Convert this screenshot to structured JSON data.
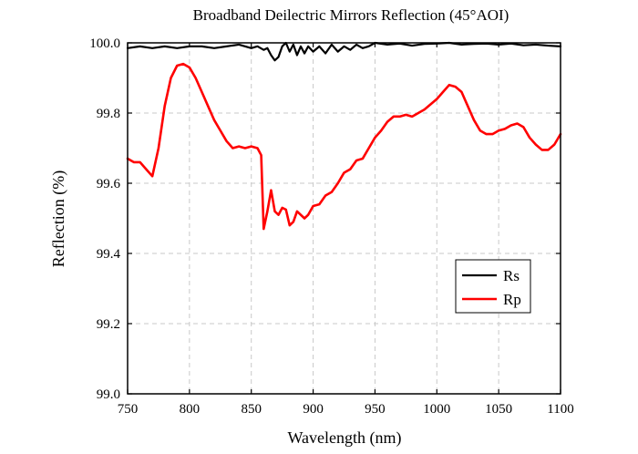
{
  "chart_data": {
    "type": "line",
    "title": "Broadband Deilectric Mirrors Reflection (45°AOI)",
    "xlabel": "Wavelength (nm)",
    "ylabel": "Reflection (%)",
    "xlim": [
      750,
      1100
    ],
    "ylim": [
      99.0,
      100.0
    ],
    "x_ticks": [
      750,
      800,
      850,
      900,
      950,
      1000,
      1050,
      1100
    ],
    "x_tick_labels": [
      "750",
      "800",
      "850",
      "900",
      "950",
      "1000",
      "1050",
      "1100"
    ],
    "y_ticks": [
      99.0,
      99.2,
      99.4,
      99.6,
      99.8,
      100.0
    ],
    "y_tick_labels": [
      "99.0",
      "99.2",
      "99.4",
      "99.6",
      "99.8",
      "100.0"
    ],
    "grid": true,
    "grid_style": "dashed",
    "legend_position": "bottom-right",
    "series": [
      {
        "name": "Rs",
        "color": "#000000",
        "x": [
          750,
          760,
          770,
          780,
          790,
          800,
          810,
          820,
          830,
          840,
          850,
          855,
          860,
          863,
          866,
          869,
          872,
          875,
          878,
          881,
          884,
          887,
          890,
          893,
          896,
          900,
          905,
          910,
          915,
          920,
          925,
          930,
          935,
          940,
          945,
          950,
          960,
          970,
          980,
          990,
          1000,
          1010,
          1020,
          1030,
          1040,
          1050,
          1060,
          1070,
          1080,
          1090,
          1100
        ],
        "y": [
          99.985,
          99.99,
          99.985,
          99.99,
          99.985,
          99.99,
          99.99,
          99.985,
          99.99,
          99.995,
          99.985,
          99.99,
          99.98,
          99.985,
          99.965,
          99.95,
          99.96,
          99.99,
          100.0,
          99.975,
          99.995,
          99.965,
          99.99,
          99.97,
          99.99,
          99.975,
          99.99,
          99.97,
          99.995,
          99.975,
          99.99,
          99.98,
          99.995,
          99.985,
          99.99,
          100.0,
          99.995,
          99.998,
          99.992,
          99.997,
          99.998,
          100.0,
          99.995,
          99.997,
          99.998,
          99.995,
          99.998,
          99.993,
          99.995,
          99.992,
          99.99
        ]
      },
      {
        "name": "Rp",
        "color": "#ff0000",
        "x": [
          750,
          755,
          760,
          765,
          770,
          775,
          780,
          785,
          790,
          795,
          800,
          805,
          810,
          815,
          820,
          825,
          830,
          835,
          840,
          845,
          850,
          855,
          858,
          860,
          863,
          866,
          869,
          872,
          875,
          878,
          881,
          884,
          887,
          890,
          893,
          896,
          900,
          905,
          910,
          915,
          920,
          925,
          930,
          935,
          940,
          945,
          950,
          955,
          960,
          965,
          970,
          975,
          980,
          985,
          990,
          995,
          1000,
          1005,
          1010,
          1015,
          1020,
          1025,
          1030,
          1035,
          1040,
          1045,
          1050,
          1055,
          1060,
          1065,
          1070,
          1075,
          1080,
          1085,
          1090,
          1095,
          1100
        ],
        "y": [
          99.67,
          99.66,
          99.66,
          99.64,
          99.62,
          99.7,
          99.82,
          99.9,
          99.935,
          99.94,
          99.93,
          99.9,
          99.86,
          99.82,
          99.78,
          99.75,
          99.72,
          99.7,
          99.705,
          99.7,
          99.705,
          99.7,
          99.68,
          99.47,
          99.52,
          99.58,
          99.52,
          99.51,
          99.53,
          99.525,
          99.48,
          99.49,
          99.52,
          99.51,
          99.5,
          99.51,
          99.535,
          99.54,
          99.565,
          99.575,
          99.6,
          99.63,
          99.64,
          99.665,
          99.67,
          99.7,
          99.73,
          99.75,
          99.775,
          99.79,
          99.79,
          99.795,
          99.79,
          99.8,
          99.81,
          99.825,
          99.84,
          99.86,
          99.88,
          99.875,
          99.86,
          99.82,
          99.78,
          99.75,
          99.74,
          99.74,
          99.75,
          99.755,
          99.765,
          99.77,
          99.76,
          99.73,
          99.71,
          99.695,
          99.695,
          99.71,
          99.74
        ]
      }
    ]
  }
}
